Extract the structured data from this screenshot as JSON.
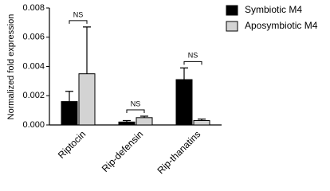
{
  "chart_data": {
    "type": "bar",
    "categories": [
      "Riptocin",
      "Rip-defensin",
      "Rip-thanatins"
    ],
    "y_label": "Normalized fold expression",
    "series": [
      {
        "name": "Symbiotic M4",
        "color": "#000000",
        "values": [
          0.0016,
          0.0002,
          0.0031
        ],
        "errors": [
          0.0007,
          0.0001,
          0.0008
        ]
      },
      {
        "name": "Aposymbiotic M4",
        "color": "#d3d3d3",
        "values": [
          0.0035,
          0.0005,
          0.0003
        ],
        "errors": [
          0.0032,
          0.0001,
          0.0001
        ]
      }
    ],
    "annotations": [
      "NS",
      "NS",
      "NS"
    ],
    "ylim": [
      0,
      0.008
    ],
    "yticks": [
      {
        "value": 0,
        "label": "0.000"
      },
      {
        "value": 0.002,
        "label": "0.002"
      },
      {
        "value": 0.004,
        "label": "0.004"
      },
      {
        "value": 0.006,
        "label": "0.006"
      },
      {
        "value": 0.008,
        "label": "0.008"
      }
    ]
  }
}
